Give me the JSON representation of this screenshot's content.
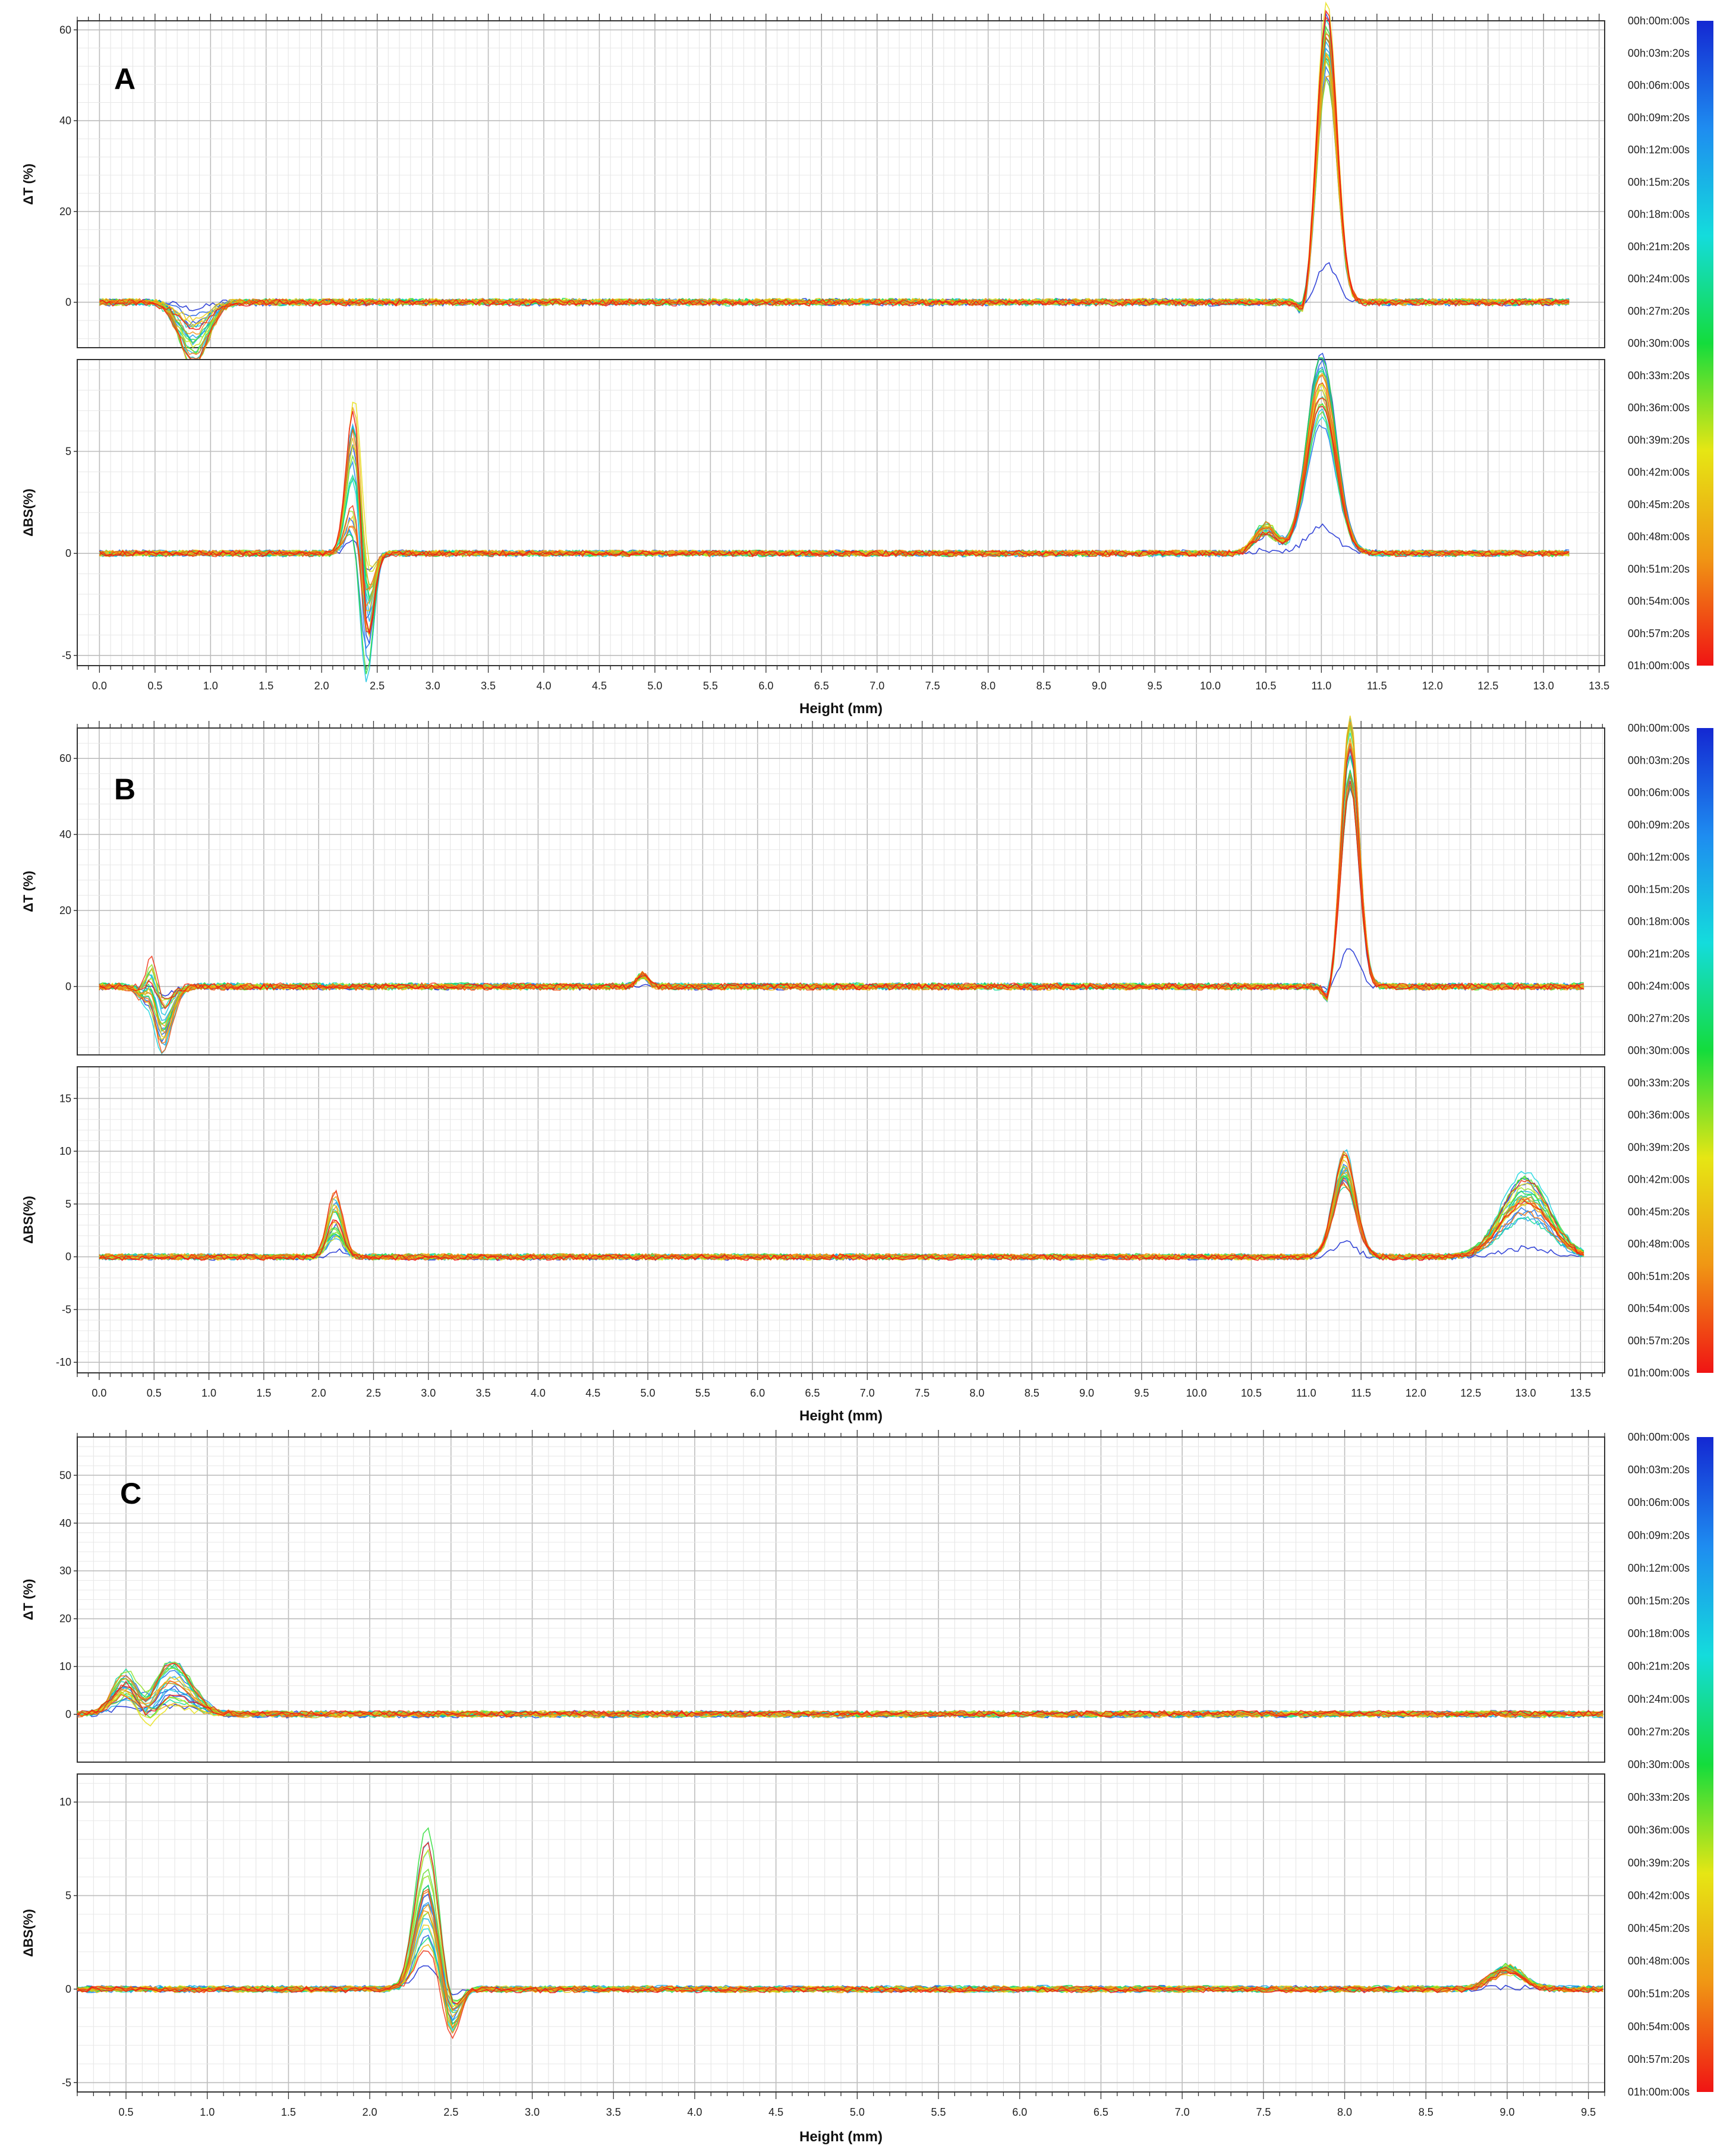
{
  "figure": {
    "color_scale": {
      "stops": [
        "#1428d2",
        "#1e8cf0",
        "#14dcdc",
        "#14dc3c",
        "#e6e614",
        "#f09614",
        "#f01414"
      ],
      "labels": [
        "00h:00m:00s",
        "00h:03m:20s",
        "00h:06m:00s",
        "00h:09m:20s",
        "00h:12m:00s",
        "00h:15m:20s",
        "00h:18m:00s",
        "00h:21m:20s",
        "00h:24m:00s",
        "00h:27m:20s",
        "00h:30m:00s",
        "00h:33m:20s",
        "00h:36m:00s",
        "00h:39m:20s",
        "00h:42m:00s",
        "00h:45m:20s",
        "00h:48m:00s",
        "00h:51m:20s",
        "00h:54m:00s",
        "00h:57m:20s",
        "01h:00m:00s"
      ]
    }
  },
  "chart_data": [
    {
      "panel": "A",
      "type": "line",
      "xlabel": "Height (mm)",
      "xlim": [
        -0.2,
        13.55
      ],
      "xticks": [
        0.0,
        0.5,
        1.0,
        1.5,
        2.0,
        2.5,
        3.0,
        3.5,
        4.0,
        4.5,
        5.0,
        5.5,
        6.0,
        6.5,
        7.0,
        7.5,
        8.0,
        8.5,
        9.0,
        9.5,
        10.0,
        10.5,
        11.0,
        11.5,
        12.0,
        12.5,
        13.0,
        13.5
      ],
      "xtick_labels": [
        "0.0",
        "0.5",
        "1.0",
        "1.5",
        "2.0",
        "2.5",
        "3.0",
        "3.5",
        "4.0",
        "4.5",
        "5.0",
        "5.5",
        "6.0",
        "6.5",
        "7.0",
        "7.5",
        "8.0",
        "8.5",
        "9.0",
        "9.5",
        "10.0",
        "10.5",
        "11.0",
        "11.5",
        "12.0",
        "12.5",
        "13.0",
        "13.5"
      ],
      "x_end": 13.25,
      "grid": true,
      "top": {
        "ylabel": "ΔT (%)",
        "ylim": [
          -10,
          62
        ],
        "yticks": [
          0,
          20,
          40,
          60
        ],
        "features": [
          {
            "x": 0.85,
            "w": 0.13,
            "amp": -9,
            "spread": 1.5
          },
          {
            "x": 11.05,
            "w": 0.09,
            "amp": 58,
            "spread": 0.35
          },
          {
            "x": 10.85,
            "w": 0.05,
            "amp": -4,
            "spread": 0.5
          }
        ]
      },
      "bottom": {
        "ylabel": "ΔBS(%)",
        "ylim": [
          -5.5,
          9.5
        ],
        "yticks": [
          -5,
          0,
          5
        ],
        "features": [
          {
            "x": 2.3,
            "w": 0.07,
            "amp": 5,
            "spread": 1.6
          },
          {
            "x": 2.4,
            "w": 0.06,
            "amp": -4.8,
            "spread": 1.2
          },
          {
            "x": 11.0,
            "w": 0.13,
            "amp": 8,
            "spread": 0.5
          },
          {
            "x": 10.5,
            "w": 0.1,
            "amp": 1.2,
            "spread": 0.6
          }
        ]
      }
    },
    {
      "panel": "B",
      "type": "line",
      "xlabel": "Height (mm)",
      "xlim": [
        -0.2,
        13.72
      ],
      "xticks": [
        0.0,
        0.5,
        1.0,
        1.5,
        2.0,
        2.5,
        3.0,
        3.5,
        4.0,
        4.5,
        5.0,
        5.5,
        6.0,
        6.5,
        7.0,
        7.5,
        8.0,
        8.5,
        9.0,
        9.5,
        10.0,
        10.5,
        11.0,
        11.5,
        12.0,
        12.5,
        13.0,
        13.5
      ],
      "xtick_labels": [
        "0.0",
        "0.5",
        "1.0",
        "1.5",
        "2.0",
        "2.5",
        "3.0",
        "3.5",
        "4.0",
        "4.5",
        "5.0",
        "5.5",
        "6.0",
        "6.5",
        "7.0",
        "7.5",
        "8.0",
        "8.5",
        "9.0",
        "9.5",
        "10.0",
        "10.5",
        "11.0",
        "11.5",
        "12.0",
        "12.5",
        "13.0",
        "13.5"
      ],
      "x_end": 13.55,
      "grid": true,
      "top": {
        "ylabel": "ΔT (%)",
        "ylim": [
          -18,
          68
        ],
        "yticks": [
          0,
          20,
          40,
          60
        ],
        "features": [
          {
            "x": 0.55,
            "w": 0.1,
            "amp": -12,
            "spread": 1.5
          },
          {
            "x": 0.48,
            "w": 0.05,
            "amp": 8,
            "spread": 1.0
          },
          {
            "x": 4.95,
            "w": 0.05,
            "amp": 3,
            "spread": 0.2
          },
          {
            "x": 11.4,
            "w": 0.08,
            "amp": 62,
            "spread": 0.35
          },
          {
            "x": 11.2,
            "w": 0.04,
            "amp": -5,
            "spread": 0.5
          }
        ]
      },
      "bottom": {
        "ylabel": "ΔBS(%)",
        "ylim": [
          -11,
          18
        ],
        "yticks": [
          -10,
          -5,
          0,
          5,
          10,
          15
        ],
        "features": [
          {
            "x": 2.15,
            "w": 0.07,
            "amp": 4,
            "spread": 1.3
          },
          {
            "x": 11.35,
            "w": 0.1,
            "amp": 8.5,
            "spread": 0.45
          },
          {
            "x": 13.0,
            "w": 0.22,
            "amp": 6,
            "spread": 0.9
          }
        ]
      }
    },
    {
      "panel": "C",
      "type": "line",
      "xlabel": "Height (mm)",
      "xlim": [
        0.2,
        9.6
      ],
      "xticks": [
        0.5,
        1.0,
        1.5,
        2.0,
        2.5,
        3.0,
        3.5,
        4.0,
        4.5,
        5.0,
        5.5,
        6.0,
        6.5,
        7.0,
        7.5,
        8.0,
        8.5,
        9.0,
        9.5
      ],
      "xtick_labels": [
        "0.5",
        "1.0",
        "1.5",
        "2.0",
        "2.5",
        "3.0",
        "3.5",
        "4.0",
        "4.5",
        "5.0",
        "5.5",
        "6.0",
        "6.5",
        "7.0",
        "7.5",
        "8.0",
        "8.5",
        "9.0",
        "9.5"
      ],
      "x_end": 9.6,
      "grid": true,
      "top": {
        "ylabel": "ΔT (%)",
        "ylim": [
          -10,
          58
        ],
        "yticks": [
          0,
          10,
          20,
          30,
          40,
          50
        ],
        "features": [
          {
            "x": 0.5,
            "w": 0.08,
            "amp": 6,
            "spread": 1.2
          },
          {
            "x": 0.78,
            "w": 0.12,
            "amp": 7,
            "spread": 1.8
          },
          {
            "x": 0.62,
            "w": 0.06,
            "amp": -3,
            "spread": 1.0
          }
        ]
      },
      "bottom": {
        "ylabel": "ΔBS(%)",
        "ylim": [
          -5.5,
          11.5
        ],
        "yticks": [
          -5,
          0,
          5,
          10
        ],
        "features": [
          {
            "x": 2.35,
            "w": 0.07,
            "amp": 5.5,
            "spread": 1.4
          },
          {
            "x": 2.5,
            "w": 0.05,
            "amp": -2,
            "spread": 1.0
          },
          {
            "x": 9.0,
            "w": 0.1,
            "amp": 1,
            "spread": 0.6
          }
        ]
      }
    }
  ]
}
